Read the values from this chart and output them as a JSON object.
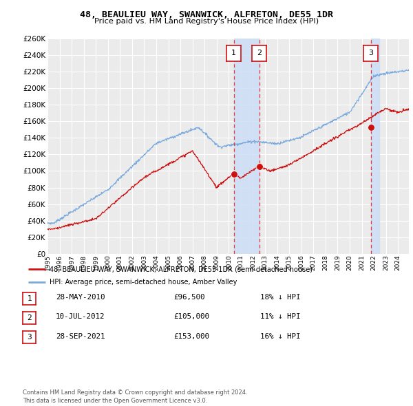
{
  "title": "48, BEAULIEU WAY, SWANWICK, ALFRETON, DE55 1DR",
  "subtitle": "Price paid vs. HM Land Registry's House Price Index (HPI)",
  "ylim": [
    0,
    260000
  ],
  "yticks": [
    0,
    20000,
    40000,
    60000,
    80000,
    100000,
    120000,
    140000,
    160000,
    180000,
    200000,
    220000,
    240000,
    260000
  ],
  "background_color": "#ffffff",
  "plot_bg_color": "#ebebeb",
  "grid_color": "#ffffff",
  "hpi_color": "#7aaadd",
  "price_color": "#cc1111",
  "vline_color": "#ee3333",
  "shade_color": "#ccddf5",
  "legend_label_price": "48, BEAULIEU WAY, SWANWICK, ALFRETON, DE55 1DR (semi-detached house)",
  "legend_label_hpi": "HPI: Average price, semi-detached house, Amber Valley",
  "transactions": [
    {
      "date": 2010.41,
      "price": 96500,
      "label": "1"
    },
    {
      "date": 2012.52,
      "price": 105000,
      "label": "2"
    },
    {
      "date": 2021.74,
      "price": 153000,
      "label": "3"
    }
  ],
  "table_rows": [
    {
      "num": "1",
      "date": "28-MAY-2010",
      "price": "£96,500",
      "change": "18% ↓ HPI"
    },
    {
      "num": "2",
      "date": "10-JUL-2012",
      "price": "£105,000",
      "change": "11% ↓ HPI"
    },
    {
      "num": "3",
      "date": "28-SEP-2021",
      "price": "£153,000",
      "change": "16% ↓ HPI"
    }
  ],
  "footnote": "Contains HM Land Registry data © Crown copyright and database right 2024.\nThis data is licensed under the Open Government Licence v3.0.",
  "xstart": 1995.0,
  "xend": 2024.9
}
